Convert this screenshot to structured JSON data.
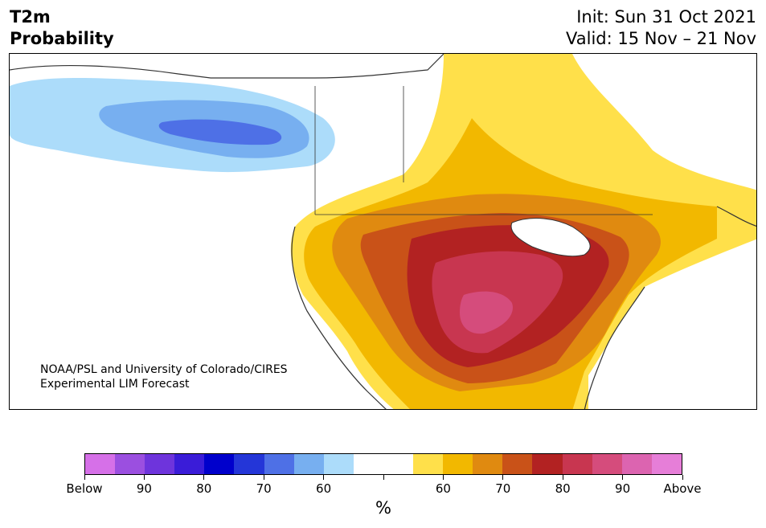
{
  "header": {
    "title_line1": "T2m",
    "title_line2": "Probability",
    "init": "Init: Sun 31 Oct 2021",
    "valid": "Valid: 15 Nov – 21 Nov"
  },
  "map": {
    "credit_line1": "NOAA/PSL and University of Colorado/CIRES",
    "credit_line2": "Experimental LIM Forecast"
  },
  "colorbar": {
    "colors": [
      "#d670e8",
      "#9b4fe0",
      "#6e34dc",
      "#3a1cd8",
      "#0000cc",
      "#2436d8",
      "#4e70e6",
      "#77aff0",
      "#acdcfa",
      "#ffffff",
      "#ffffff",
      "#ffe04a",
      "#f2b800",
      "#e08a10",
      "#c95218",
      "#b22222",
      "#c83650",
      "#d54c7c",
      "#dc64b0",
      "#e67ed8"
    ],
    "labels": [
      "Below",
      "90",
      "80",
      "70",
      "60",
      "",
      "60",
      "70",
      "80",
      "90",
      "Above"
    ],
    "unit": "%"
  }
}
